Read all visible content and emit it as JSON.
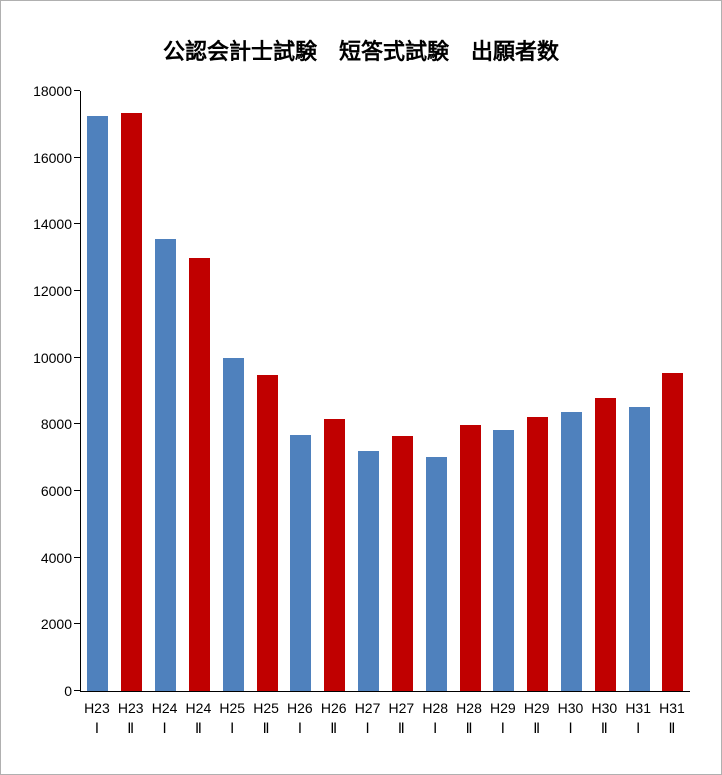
{
  "window": {
    "background": "#ffffff",
    "border_color": "#b0b0b0"
  },
  "chart_data": {
    "type": "bar",
    "title": "公認会計士試験　短答式試験　出願者数",
    "categories": [
      [
        "H23",
        "Ⅰ"
      ],
      [
        "H23",
        "Ⅱ"
      ],
      [
        "H24",
        "Ⅰ"
      ],
      [
        "H24",
        "Ⅱ"
      ],
      [
        "H25",
        "Ⅰ"
      ],
      [
        "H25",
        "Ⅱ"
      ],
      [
        "H26",
        "Ⅰ"
      ],
      [
        "H26",
        "Ⅱ"
      ],
      [
        "H27",
        "Ⅰ"
      ],
      [
        "H27",
        "Ⅱ"
      ],
      [
        "H28",
        "Ⅰ"
      ],
      [
        "H28",
        "Ⅱ"
      ],
      [
        "H29",
        "Ⅰ"
      ],
      [
        "H29",
        "Ⅱ"
      ],
      [
        "H30",
        "Ⅰ"
      ],
      [
        "H30",
        "Ⅱ"
      ],
      [
        "H31",
        "Ⅰ"
      ],
      [
        "H31",
        "Ⅱ"
      ]
    ],
    "values": [
      17250,
      17340,
      13560,
      13000,
      9990,
      9480,
      7690,
      8150,
      7210,
      7640,
      7030,
      7970,
      7820,
      8210,
      8370,
      8790,
      8510,
      9530
    ],
    "series_colors": [
      "#4F81BD",
      "#C00000"
    ],
    "color_meaning": {
      "Ⅰ": "#4F81BD",
      "Ⅱ": "#C00000"
    },
    "ylim": [
      0,
      18000
    ],
    "yticks": [
      0,
      2000,
      4000,
      6000,
      8000,
      10000,
      12000,
      14000,
      16000,
      18000
    ],
    "xlabel": "",
    "ylabel": "",
    "grid": false,
    "legend": false,
    "axis_color": "#000000"
  }
}
